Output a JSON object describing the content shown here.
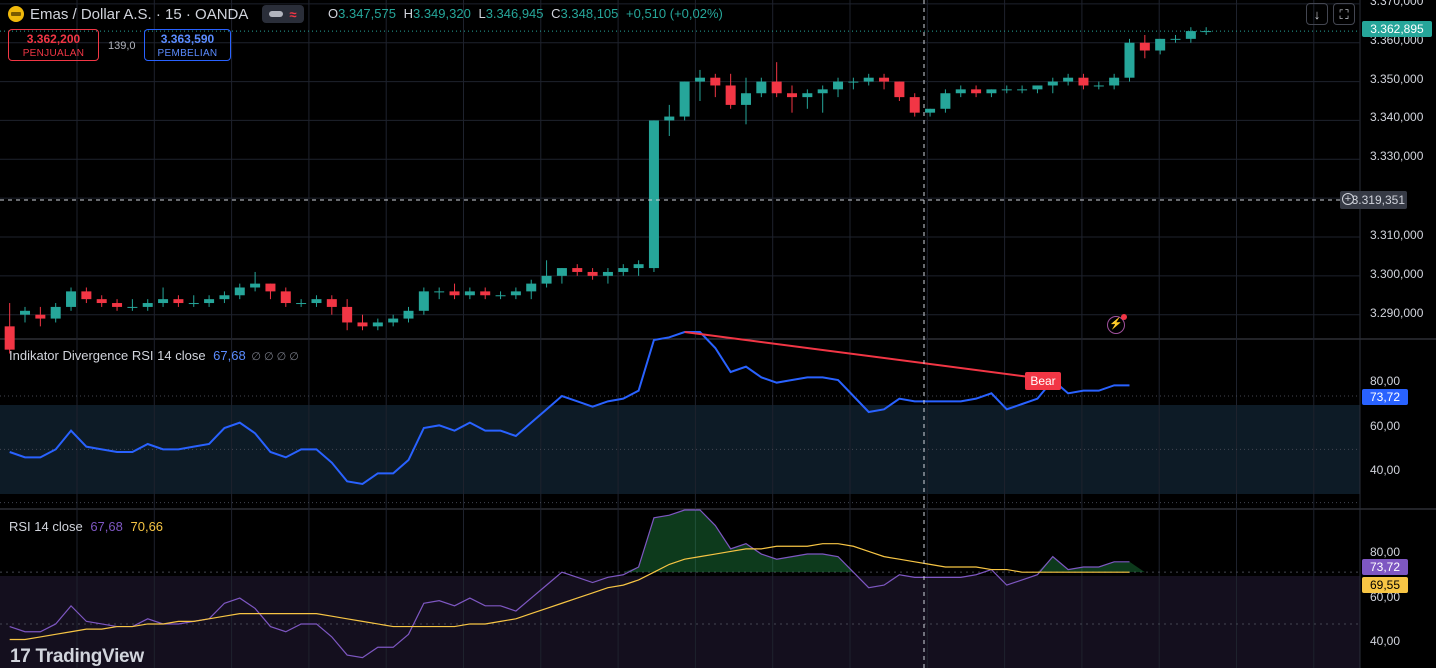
{
  "header": {
    "symbol_title": "Emas / Dollar A.S. · 15 · OANDA",
    "o_label": "O",
    "o_value": "3.347,575",
    "h_label": "H",
    "h_value": "3.349,320",
    "l_label": "L",
    "l_value": "3.346,945",
    "c_label": "C",
    "c_value": "3.348,105",
    "change": "+0,510 (+0,02%)",
    "sell_price": "3.362,200",
    "sell_label": "PENJUALAN",
    "spread": "139,0",
    "buy_price": "3.363,590",
    "buy_label": "PEMBELIAN"
  },
  "price_axis": {
    "ticks": [
      "3.370,000",
      "3.360,000",
      "3.350,000",
      "3.340,000",
      "3.330,000",
      "3.310,000",
      "3.300,000",
      "3.290,000"
    ],
    "last_price_tag": "3.362,895",
    "crosshair_tag": "3.319,351"
  },
  "divergence_panel": {
    "title": "Indikator Divergence RSI 14 close",
    "value": "67,68",
    "symbols": "∅ ∅ ∅ ∅",
    "axis_ticks": [
      "80,00",
      "60,00",
      "40,00"
    ],
    "tag": "73,72",
    "bear_label": "Bear"
  },
  "rsi_panel": {
    "title": "RSI 14 close",
    "value1": "67,68",
    "value2": "70,66",
    "axis_ticks": [
      "80,00",
      "60,00",
      "40,00"
    ],
    "tag_rsi": "73,72",
    "tag_ma": "69,55"
  },
  "branding": "TradingView",
  "colors": {
    "up": "#26a69a",
    "down": "#f23645",
    "rsi": "#2962ff",
    "rsi2": "#7e57c2",
    "ma": "#f7c544"
  },
  "chart_data": [
    {
      "type": "candlestick",
      "title": "Emas / Dollar A.S. · 15 · OANDA",
      "ylim": [
        3284,
        3371
      ],
      "candles": [
        [
          3287,
          3293,
          3280,
          3281
        ],
        [
          3290,
          3292,
          3288,
          3291
        ],
        [
          3290,
          3292,
          3287,
          3289
        ],
        [
          3289,
          3293,
          3288,
          3292
        ],
        [
          3292,
          3297,
          3291,
          3296
        ],
        [
          3296,
          3297,
          3293,
          3294
        ],
        [
          3294,
          3295,
          3292,
          3293
        ],
        [
          3293,
          3294,
          3291,
          3292
        ],
        [
          3292,
          3294,
          3291,
          3292
        ],
        [
          3292,
          3294,
          3291,
          3293
        ],
        [
          3293,
          3297,
          3292,
          3294
        ],
        [
          3294,
          3295,
          3292,
          3293
        ],
        [
          3293,
          3295,
          3292,
          3293
        ],
        [
          3293,
          3295,
          3292,
          3294
        ],
        [
          3294,
          3296,
          3293,
          3295
        ],
        [
          3295,
          3298,
          3294,
          3297
        ],
        [
          3297,
          3301,
          3296,
          3298
        ],
        [
          3298,
          3298,
          3294,
          3296
        ],
        [
          3296,
          3297,
          3292,
          3293
        ],
        [
          3293,
          3294,
          3292,
          3293
        ],
        [
          3293,
          3295,
          3292,
          3294
        ],
        [
          3294,
          3295,
          3290,
          3292
        ],
        [
          3292,
          3294,
          3286,
          3288
        ],
        [
          3288,
          3290,
          3286,
          3287
        ],
        [
          3287,
          3289,
          3286,
          3288
        ],
        [
          3288,
          3290,
          3287,
          3289
        ],
        [
          3289,
          3292,
          3288,
          3291
        ],
        [
          3291,
          3297,
          3290,
          3296
        ],
        [
          3296,
          3297,
          3294,
          3296
        ],
        [
          3296,
          3298,
          3294,
          3295
        ],
        [
          3295,
          3297,
          3294,
          3296
        ],
        [
          3296,
          3297,
          3294,
          3295
        ],
        [
          3295,
          3296,
          3294,
          3295
        ],
        [
          3295,
          3297,
          3294,
          3296
        ],
        [
          3296,
          3299,
          3294,
          3298
        ],
        [
          3298,
          3304,
          3297,
          3300
        ],
        [
          3300,
          3302,
          3298,
          3302
        ],
        [
          3302,
          3303,
          3300,
          3301
        ],
        [
          3301,
          3302,
          3299,
          3300
        ],
        [
          3300,
          3302,
          3298,
          3301
        ],
        [
          3301,
          3303,
          3300,
          3302
        ],
        [
          3302,
          3304,
          3300,
          3303
        ],
        [
          3302,
          3340,
          3301,
          3340
        ],
        [
          3340,
          3344,
          3336,
          3341
        ],
        [
          3341,
          3350,
          3340,
          3350
        ],
        [
          3350,
          3353,
          3345,
          3351
        ],
        [
          3351,
          3352,
          3346,
          3349
        ],
        [
          3349,
          3352,
          3343,
          3344
        ],
        [
          3344,
          3351,
          3339,
          3347
        ],
        [
          3347,
          3351,
          3346,
          3350
        ],
        [
          3350,
          3355,
          3346,
          3347
        ],
        [
          3347,
          3349,
          3342,
          3346
        ],
        [
          3346,
          3348,
          3343,
          3347
        ],
        [
          3347,
          3349,
          3342,
          3348
        ],
        [
          3348,
          3351,
          3346,
          3350
        ],
        [
          3350,
          3351,
          3348,
          3350
        ],
        [
          3350,
          3352,
          3349,
          3351
        ],
        [
          3351,
          3352,
          3348,
          3350
        ],
        [
          3350,
          3350,
          3345,
          3346
        ],
        [
          3346,
          3347,
          3341,
          3342
        ],
        [
          3342,
          3343,
          3341,
          3343
        ],
        [
          3343,
          3348,
          3342,
          3347
        ],
        [
          3347,
          3349,
          3346,
          3348
        ],
        [
          3348,
          3349,
          3346,
          3347
        ],
        [
          3347,
          3348,
          3346,
          3348
        ],
        [
          3348,
          3349,
          3347,
          3348
        ],
        [
          3348,
          3349,
          3347,
          3348
        ],
        [
          3348,
          3349,
          3347,
          3349
        ],
        [
          3349,
          3351,
          3347,
          3350
        ],
        [
          3350,
          3352,
          3349,
          3351
        ],
        [
          3351,
          3352,
          3348,
          3349
        ],
        [
          3349,
          3350,
          3348,
          3349
        ],
        [
          3349,
          3352,
          3348,
          3351
        ],
        [
          3351,
          3361,
          3350,
          3360
        ],
        [
          3360,
          3362,
          3356,
          3358
        ],
        [
          3358,
          3361,
          3357,
          3361
        ],
        [
          3361,
          3362,
          3360,
          3361
        ],
        [
          3361,
          3364,
          3360,
          3363
        ],
        [
          3363,
          3364,
          3362,
          3363
        ]
      ]
    },
    {
      "type": "line",
      "title": "Indikator Divergence RSI 14 close",
      "ylim": [
        28,
        91
      ],
      "series": [
        {
          "name": "RSI 14 close",
          "values": [
            49,
            47,
            47,
            50,
            57,
            51,
            50,
            49,
            49,
            52,
            50,
            50,
            51,
            52,
            58,
            60,
            56,
            49,
            47,
            50,
            50,
            45,
            38,
            37,
            41,
            41,
            46,
            58,
            59,
            57,
            60,
            57,
            57,
            55,
            60,
            65,
            70,
            68,
            66,
            68,
            69,
            72,
            91,
            92,
            94,
            94,
            88,
            79,
            81,
            77,
            75,
            76,
            77,
            77,
            76,
            70,
            64,
            65,
            69,
            68,
            68,
            68,
            68,
            69,
            71,
            65,
            67,
            69,
            76,
            71,
            72,
            72,
            74,
            74
          ]
        }
      ],
      "reference_lines": [
        70,
        50,
        30
      ],
      "divergence": {
        "label": "Bear",
        "from_value": 94,
        "to_value": 76
      }
    },
    {
      "type": "line",
      "title": "RSI 14 close",
      "ylim": [
        33,
        94
      ],
      "series": [
        {
          "name": "RSI 14 close",
          "values": [
            49,
            47,
            47,
            50,
            57,
            51,
            50,
            49,
            49,
            52,
            50,
            50,
            51,
            52,
            58,
            60,
            56,
            49,
            47,
            50,
            50,
            45,
            38,
            37,
            41,
            41,
            46,
            58,
            59,
            57,
            60,
            57,
            57,
            55,
            60,
            65,
            70,
            68,
            66,
            68,
            69,
            72,
            91,
            92,
            94,
            94,
            88,
            79,
            81,
            77,
            75,
            76,
            77,
            77,
            76,
            70,
            64,
            65,
            69,
            68,
            68,
            68,
            68,
            69,
            71,
            65,
            67,
            69,
            76,
            71,
            72,
            72,
            74,
            74
          ]
        },
        {
          "name": "MA",
          "values": [
            44,
            44,
            45,
            46,
            47,
            48,
            48,
            49,
            49,
            50,
            50,
            51,
            51,
            52,
            53,
            54,
            54,
            54,
            54,
            54,
            54,
            53,
            52,
            51,
            50,
            49,
            49,
            49,
            49,
            49,
            50,
            50,
            51,
            52,
            54,
            56,
            58,
            60,
            62,
            64,
            65,
            67,
            70,
            73,
            75,
            76,
            77,
            78,
            79,
            79,
            80,
            80,
            80,
            81,
            81,
            80,
            78,
            76,
            75,
            74,
            73,
            72,
            72,
            72,
            71,
            71,
            70,
            70,
            70,
            70,
            70,
            70,
            70,
            70
          ]
        }
      ],
      "reference_lines": [
        70,
        50,
        30
      ]
    }
  ]
}
